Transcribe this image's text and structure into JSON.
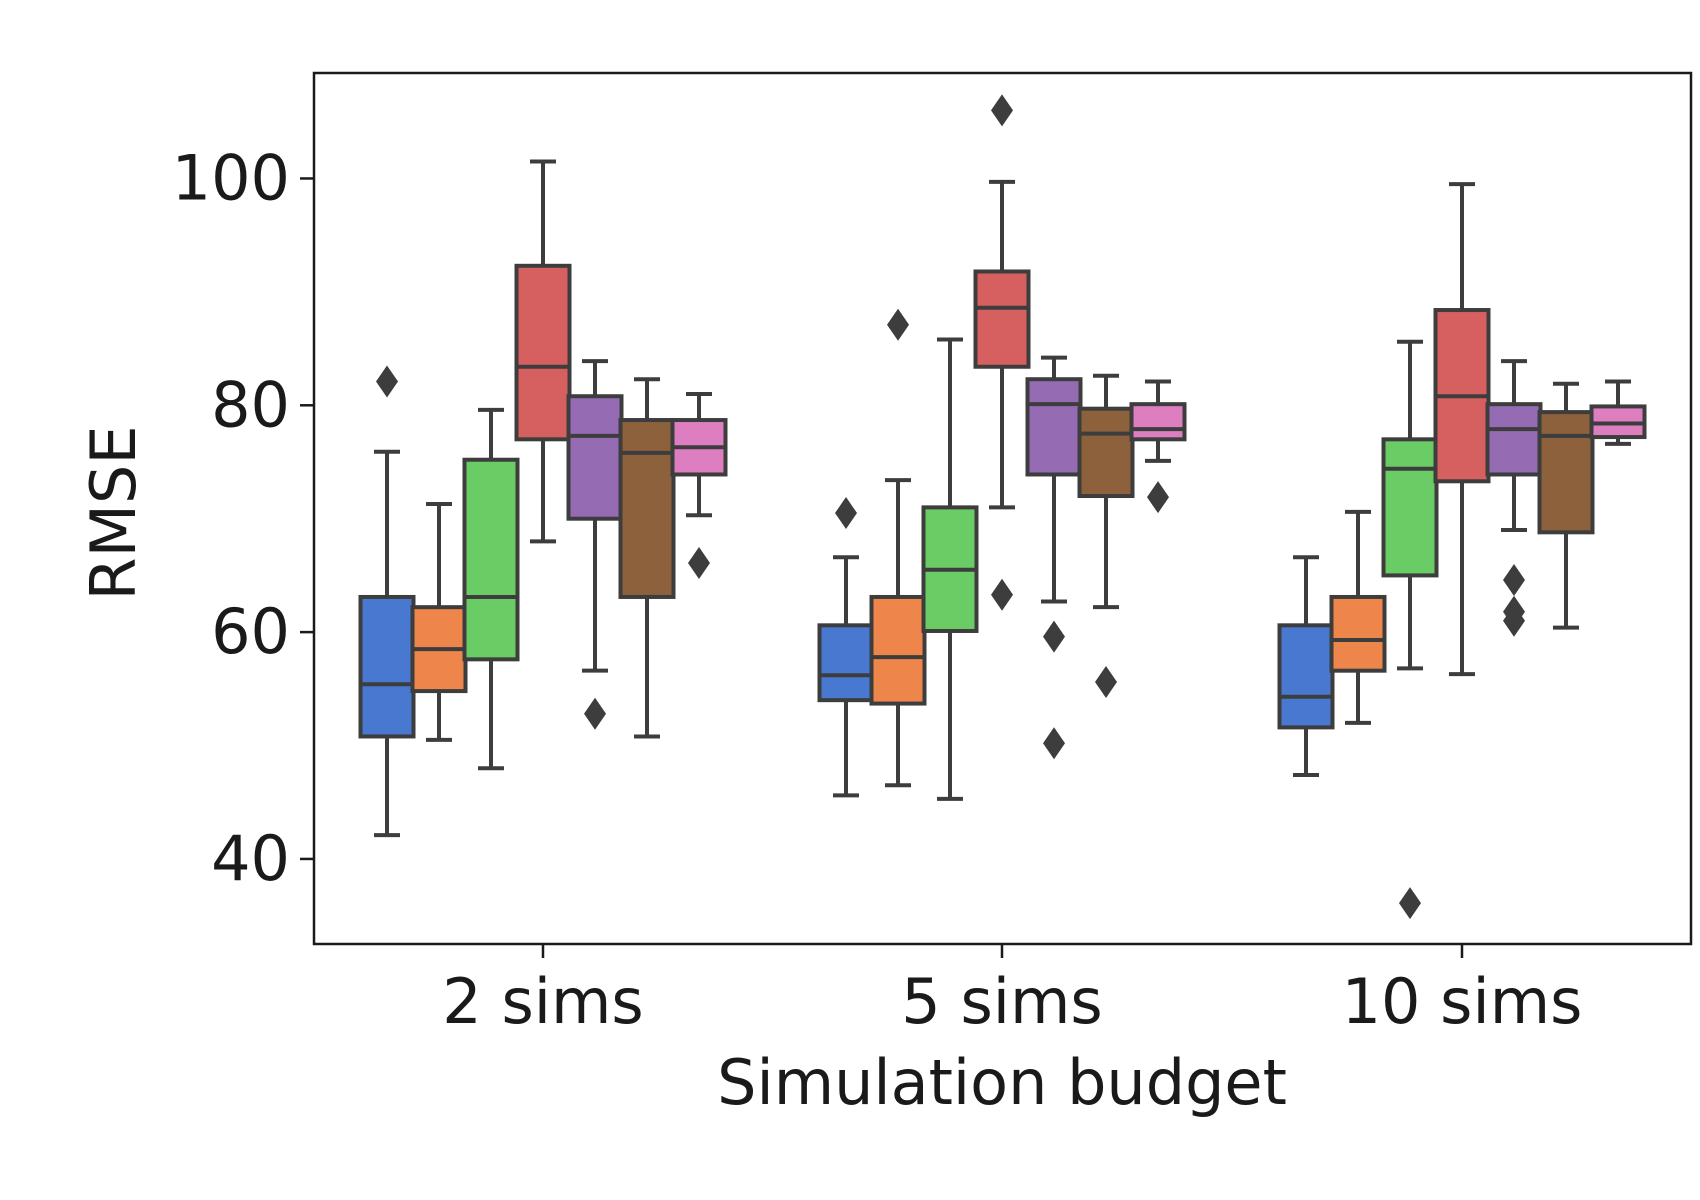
{
  "chart_data": {
    "type": "box",
    "title": "",
    "xlabel": "Simulation budget",
    "ylabel": "RMSE",
    "ylim": [
      32.5,
      109.3
    ],
    "yticks": [
      40,
      60,
      80,
      100
    ],
    "grid": false,
    "legend": "none",
    "categories": [
      "2 sims",
      "5 sims",
      "10 sims"
    ],
    "series_colors": [
      "#4878d0",
      "#ee854a",
      "#6acc64",
      "#d65f5f",
      "#956cb4",
      "#8c613c",
      "#dc7ec0"
    ],
    "groups": [
      {
        "category": "2 sims",
        "boxes": [
          {
            "whisker_low": 42.1,
            "q1": 50.8,
            "median": 55.4,
            "q3": 63.1,
            "whisker_high": 75.9,
            "outliers": [
              82.1
            ]
          },
          {
            "whisker_low": 50.5,
            "q1": 54.8,
            "median": 58.5,
            "q3": 62.2,
            "whisker_high": 71.3,
            "outliers": []
          },
          {
            "whisker_low": 48.0,
            "q1": 57.6,
            "median": 63.1,
            "q3": 75.2,
            "whisker_high": 79.6,
            "outliers": []
          },
          {
            "whisker_low": 68.0,
            "q1": 77.0,
            "median": 83.4,
            "q3": 92.3,
            "whisker_high": 101.5,
            "outliers": []
          },
          {
            "whisker_low": 56.6,
            "q1": 70.0,
            "median": 77.3,
            "q3": 80.8,
            "whisker_high": 83.9,
            "outliers": [
              52.8
            ]
          },
          {
            "whisker_low": 50.8,
            "q1": 63.1,
            "median": 75.8,
            "q3": 78.7,
            "whisker_high": 82.3,
            "outliers": []
          },
          {
            "whisker_low": 70.3,
            "q1": 73.9,
            "median": 76.3,
            "q3": 78.7,
            "whisker_high": 81.0,
            "outliers": [
              66.1
            ]
          }
        ]
      },
      {
        "category": "5 sims",
        "boxes": [
          {
            "whisker_low": 45.6,
            "q1": 54.0,
            "median": 56.2,
            "q3": 60.6,
            "whisker_high": 66.6,
            "outliers": [
              70.5
            ]
          },
          {
            "whisker_low": 46.5,
            "q1": 53.7,
            "median": 57.8,
            "q3": 63.1,
            "whisker_high": 73.4,
            "outliers": [
              87.1
            ]
          },
          {
            "whisker_low": 45.3,
            "q1": 60.1,
            "median": 65.5,
            "q3": 71.0,
            "whisker_high": 85.8,
            "outliers": []
          },
          {
            "whisker_low": 71.0,
            "q1": 83.4,
            "median": 88.6,
            "q3": 91.8,
            "whisker_high": 99.7,
            "outliers": [
              106.0,
              63.3
            ]
          },
          {
            "whisker_low": 62.7,
            "q1": 73.9,
            "median": 80.1,
            "q3": 82.3,
            "whisker_high": 84.2,
            "outliers": [
              59.6,
              50.2
            ]
          },
          {
            "whisker_low": 62.2,
            "q1": 72.0,
            "median": 77.5,
            "q3": 79.7,
            "whisker_high": 82.6,
            "outliers": [
              55.6
            ]
          },
          {
            "whisker_low": 75.1,
            "q1": 77.0,
            "median": 77.9,
            "q3": 80.1,
            "whisker_high": 82.1,
            "outliers": [
              71.9
            ]
          }
        ]
      },
      {
        "category": "10 sims",
        "boxes": [
          {
            "whisker_low": 47.4,
            "q1": 51.6,
            "median": 54.3,
            "q3": 60.6,
            "whisker_high": 66.6,
            "outliers": []
          },
          {
            "whisker_low": 52.0,
            "q1": 56.6,
            "median": 59.3,
            "q3": 63.1,
            "whisker_high": 70.6,
            "outliers": []
          },
          {
            "whisker_low": 56.8,
            "q1": 65.0,
            "median": 74.4,
            "q3": 77.0,
            "whisker_high": 85.6,
            "outliers": [
              36.1
            ]
          },
          {
            "whisker_low": 56.3,
            "q1": 73.3,
            "median": 80.8,
            "q3": 88.4,
            "whisker_high": 99.5,
            "outliers": []
          },
          {
            "whisker_low": 69.0,
            "q1": 73.9,
            "median": 77.9,
            "q3": 80.1,
            "whisker_high": 83.9,
            "outliers": [
              64.6,
              61.8,
              61.0
            ]
          },
          {
            "whisker_low": 60.4,
            "q1": 68.8,
            "median": 77.3,
            "q3": 79.4,
            "whisker_high": 81.9,
            "outliers": []
          },
          {
            "whisker_low": 76.6,
            "q1": 77.2,
            "median": 78.4,
            "q3": 79.9,
            "whisker_high": 82.1,
            "outliers": []
          }
        ]
      }
    ]
  }
}
